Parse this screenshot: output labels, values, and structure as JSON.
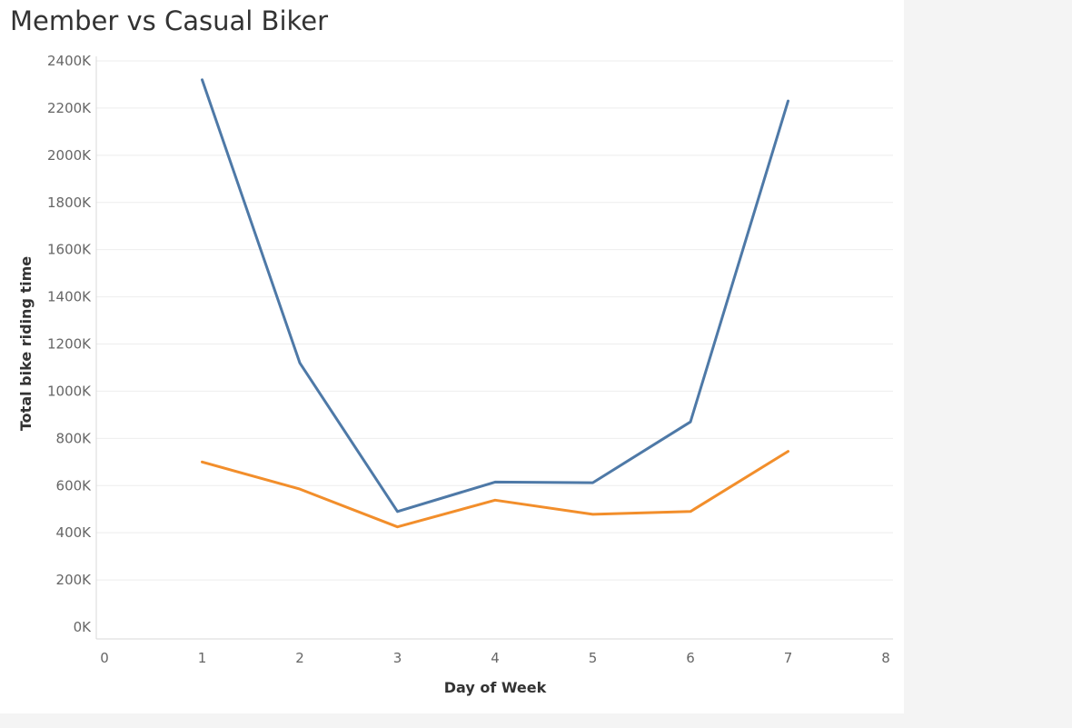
{
  "chart_data": {
    "type": "line",
    "title": "Member vs Casual Biker",
    "xlabel": "Day of Week",
    "ylabel": "Total bike riding time",
    "xlim": [
      0,
      8
    ],
    "ylim": [
      0,
      2400000
    ],
    "x_ticks": [
      "0",
      "1",
      "2",
      "3",
      "4",
      "5",
      "6",
      "7",
      "8"
    ],
    "y_ticks": [
      "0K",
      "200K",
      "400K",
      "600K",
      "800K",
      "1000K",
      "1200K",
      "1400K",
      "1600K",
      "1800K",
      "2000K",
      "2200K",
      "2400K"
    ],
    "grid": "horizontal",
    "x": [
      1,
      2,
      3,
      4,
      5,
      6,
      7
    ],
    "series": [
      {
        "color": "#4e79a7",
        "values": [
          2320000,
          1120000,
          490000,
          615000,
          612000,
          870000,
          2230000
        ]
      },
      {
        "color": "#f28e2b",
        "values": [
          700000,
          585000,
          425000,
          538000,
          478000,
          490000,
          745000
        ]
      }
    ]
  }
}
